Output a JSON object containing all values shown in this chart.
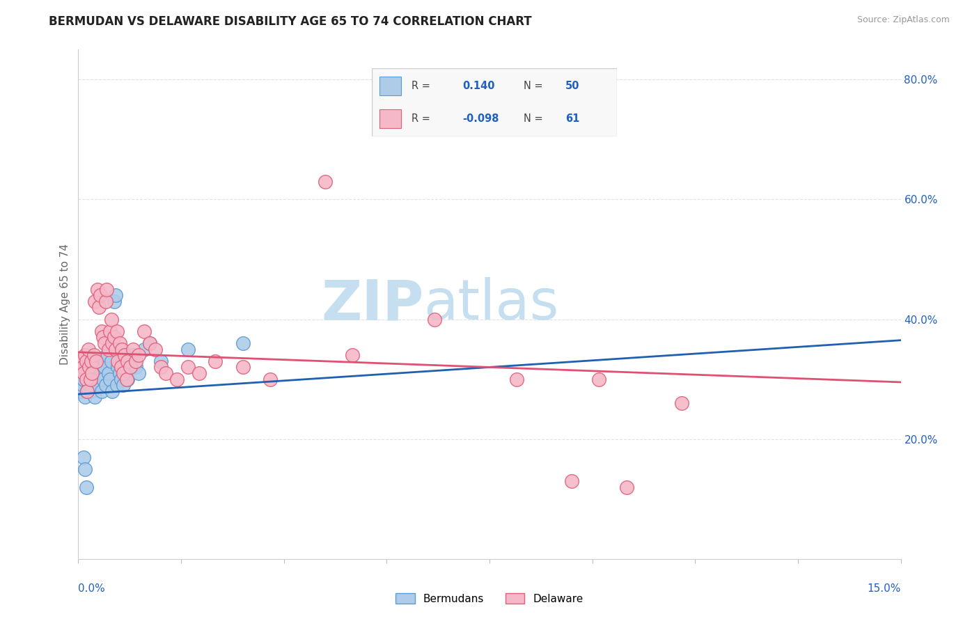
{
  "title": "BERMUDAN VS DELAWARE DISABILITY AGE 65 TO 74 CORRELATION CHART",
  "source": "Source: ZipAtlas.com",
  "ylabel": "Disability Age 65 to 74",
  "xlim": [
    0.0,
    15.0
  ],
  "ylim": [
    0.0,
    85.0
  ],
  "yticks": [
    20.0,
    40.0,
    60.0,
    80.0
  ],
  "xtick_positions": [
    0.0,
    1.875,
    3.75,
    5.625,
    7.5,
    9.375,
    11.25,
    13.125,
    15.0
  ],
  "bermudans": {
    "R": 0.14,
    "N": 50,
    "color": "#aecce8",
    "edge_color": "#5b9bd5",
    "line_color": "#2060b0",
    "line_style": "-",
    "trend_x": [
      0.0,
      15.0
    ],
    "trend_y": [
      27.5,
      36.5
    ],
    "points": [
      [
        0.05,
        28
      ],
      [
        0.08,
        29
      ],
      [
        0.1,
        30
      ],
      [
        0.12,
        27
      ],
      [
        0.14,
        31
      ],
      [
        0.15,
        32
      ],
      [
        0.16,
        28
      ],
      [
        0.18,
        33
      ],
      [
        0.2,
        29
      ],
      [
        0.22,
        30
      ],
      [
        0.24,
        28
      ],
      [
        0.25,
        31
      ],
      [
        0.28,
        32
      ],
      [
        0.3,
        27
      ],
      [
        0.32,
        30
      ],
      [
        0.35,
        29
      ],
      [
        0.38,
        33
      ],
      [
        0.4,
        31
      ],
      [
        0.42,
        28
      ],
      [
        0.45,
        30
      ],
      [
        0.48,
        32
      ],
      [
        0.5,
        29
      ],
      [
        0.52,
        34
      ],
      [
        0.55,
        31
      ],
      [
        0.58,
        30
      ],
      [
        0.6,
        33
      ],
      [
        0.62,
        28
      ],
      [
        0.65,
        43
      ],
      [
        0.68,
        44
      ],
      [
        0.7,
        29
      ],
      [
        0.72,
        32
      ],
      [
        0.75,
        31
      ],
      [
        0.78,
        30
      ],
      [
        0.8,
        33
      ],
      [
        0.82,
        29
      ],
      [
        0.85,
        32
      ],
      [
        0.88,
        31
      ],
      [
        0.9,
        30
      ],
      [
        0.95,
        33
      ],
      [
        1.0,
        34
      ],
      [
        1.05,
        32
      ],
      [
        1.1,
        31
      ],
      [
        1.2,
        35
      ],
      [
        1.3,
        36
      ],
      [
        1.5,
        33
      ],
      [
        2.0,
        35
      ],
      [
        3.0,
        36
      ],
      [
        0.1,
        17
      ],
      [
        0.12,
        15
      ],
      [
        0.15,
        12
      ]
    ]
  },
  "delaware": {
    "R": -0.098,
    "N": 61,
    "color": "#f4b8c8",
    "edge_color": "#e0607a",
    "line_color": "#e05070",
    "line_style": "-",
    "trend_x": [
      0.0,
      15.0
    ],
    "trend_y": [
      34.5,
      29.5
    ],
    "points": [
      [
        0.05,
        33
      ],
      [
        0.08,
        32
      ],
      [
        0.1,
        31
      ],
      [
        0.12,
        34
      ],
      [
        0.14,
        30
      ],
      [
        0.15,
        33
      ],
      [
        0.16,
        28
      ],
      [
        0.18,
        35
      ],
      [
        0.2,
        32
      ],
      [
        0.22,
        30
      ],
      [
        0.24,
        33
      ],
      [
        0.25,
        31
      ],
      [
        0.28,
        34
      ],
      [
        0.3,
        43
      ],
      [
        0.32,
        33
      ],
      [
        0.35,
        45
      ],
      [
        0.38,
        42
      ],
      [
        0.4,
        44
      ],
      [
        0.42,
        38
      ],
      [
        0.45,
        37
      ],
      [
        0.48,
        36
      ],
      [
        0.5,
        43
      ],
      [
        0.52,
        45
      ],
      [
        0.55,
        35
      ],
      [
        0.58,
        38
      ],
      [
        0.6,
        40
      ],
      [
        0.62,
        36
      ],
      [
        0.65,
        37
      ],
      [
        0.68,
        35
      ],
      [
        0.7,
        38
      ],
      [
        0.72,
        33
      ],
      [
        0.75,
        36
      ],
      [
        0.78,
        32
      ],
      [
        0.8,
        35
      ],
      [
        0.82,
        31
      ],
      [
        0.85,
        34
      ],
      [
        0.88,
        30
      ],
      [
        0.9,
        33
      ],
      [
        0.95,
        32
      ],
      [
        1.0,
        35
      ],
      [
        1.05,
        33
      ],
      [
        1.1,
        34
      ],
      [
        1.2,
        38
      ],
      [
        1.3,
        36
      ],
      [
        1.4,
        35
      ],
      [
        1.5,
        32
      ],
      [
        1.6,
        31
      ],
      [
        1.8,
        30
      ],
      [
        2.0,
        32
      ],
      [
        2.2,
        31
      ],
      [
        2.5,
        33
      ],
      [
        3.0,
        32
      ],
      [
        3.5,
        30
      ],
      [
        4.5,
        63
      ],
      [
        5.0,
        34
      ],
      [
        6.5,
        40
      ],
      [
        8.0,
        30
      ],
      [
        9.0,
        13
      ],
      [
        10.0,
        12
      ],
      [
        9.5,
        30
      ],
      [
        11.0,
        26
      ]
    ]
  },
  "watermark_zip": "ZIP",
  "watermark_atlas": "atlas",
  "watermark_color_zip": "#c5dff0",
  "watermark_color_atlas": "#c5dff0",
  "background_color": "#ffffff",
  "grid_color": "#e0e0e0",
  "legend_box_color": "#f8f8f8",
  "legend_box_edge": "#cccccc",
  "text_color": "#444444",
  "stat_color": "#2060c0"
}
